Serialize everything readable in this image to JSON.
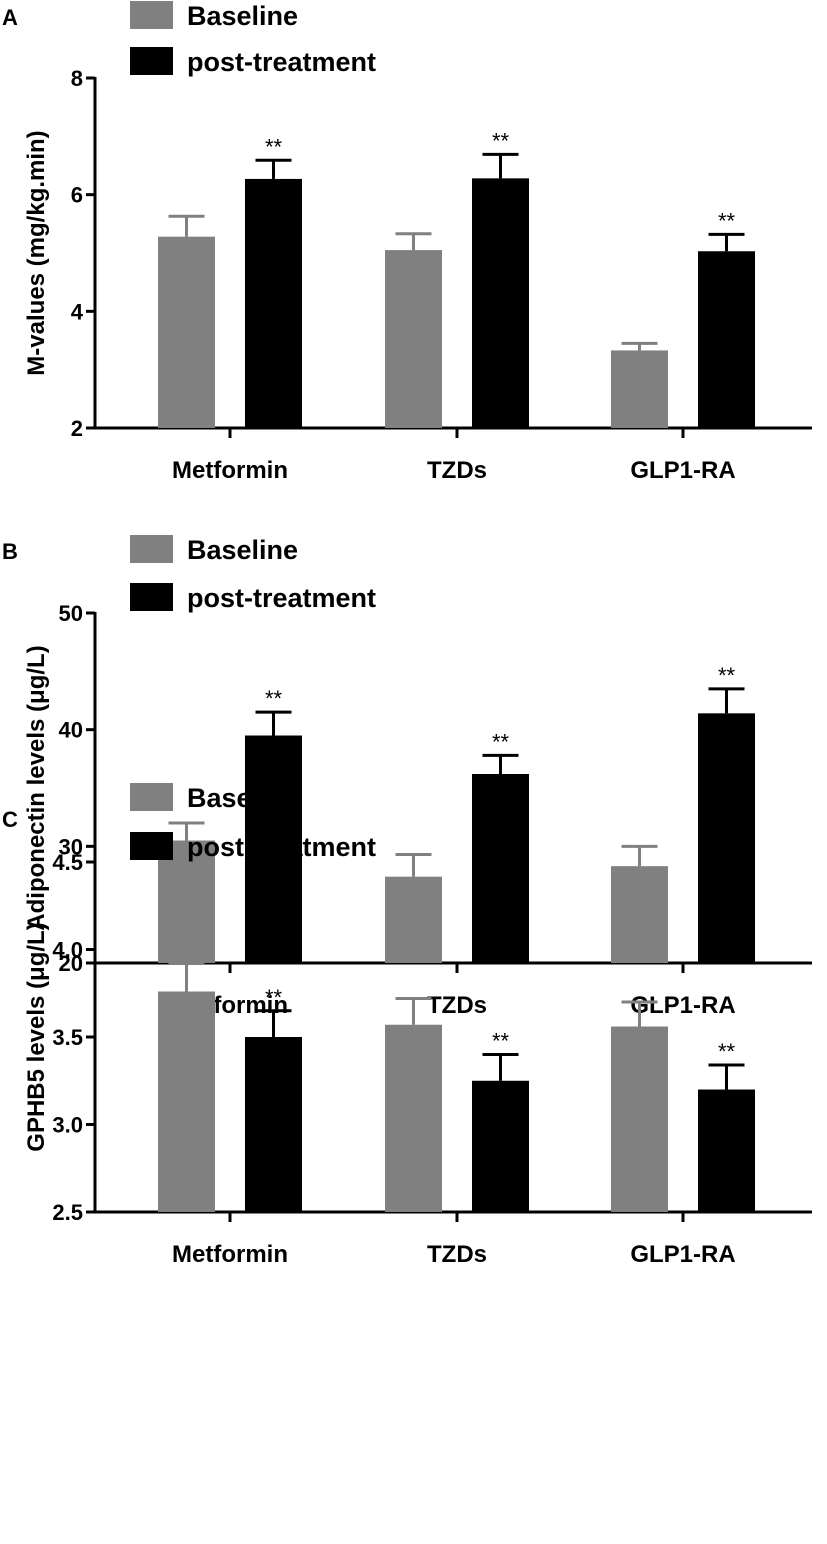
{
  "colors": {
    "baseline": "#808080",
    "post": "#000000",
    "axis": "#000000"
  },
  "chart_data": [
    {
      "type": "bar",
      "panel": "A",
      "ylabel": "M-values (mg/kg.min)",
      "ylim": [
        2,
        8
      ],
      "yticks": [
        2,
        4,
        6,
        8
      ],
      "ytick_labels": [
        "2",
        "4",
        "6",
        "8"
      ],
      "categories": [
        "Metformin",
        "TZDs",
        "GLP1-RA"
      ],
      "legend": [
        "Baseline",
        "post-treatment"
      ],
      "series": [
        {
          "name": "Baseline",
          "values": [
            5.28,
            5.05,
            3.33
          ],
          "errors": [
            0.35,
            0.28,
            0.12
          ],
          "sig": [
            "",
            "",
            ""
          ]
        },
        {
          "name": "post-treatment",
          "values": [
            6.27,
            6.28,
            5.03
          ],
          "errors": [
            0.32,
            0.41,
            0.29
          ],
          "sig": [
            "**",
            "**",
            "**"
          ]
        }
      ]
    },
    {
      "type": "bar",
      "panel": "B",
      "ylabel": "Adiponectin levels (μg/L)",
      "ylim": [
        20,
        50
      ],
      "yticks": [
        20,
        30,
        40,
        50
      ],
      "ytick_labels": [
        "20",
        "30",
        "40",
        "50"
      ],
      "categories": [
        "Metformin",
        "TZDs",
        "GLP1-RA"
      ],
      "legend": [
        "Baseline",
        "post-treatment"
      ],
      "series": [
        {
          "name": "Baseline",
          "values": [
            30.5,
            27.4,
            28.3
          ],
          "errors": [
            1.5,
            1.9,
            1.7
          ],
          "sig": [
            "",
            "",
            ""
          ]
        },
        {
          "name": "post-treatment",
          "values": [
            39.5,
            36.2,
            41.4
          ],
          "errors": [
            2.0,
            1.6,
            2.1
          ],
          "sig": [
            "**",
            "**",
            "**"
          ]
        }
      ]
    },
    {
      "type": "bar",
      "panel": "C",
      "ylabel": "GPHB5 levels (μg/L)",
      "ylim": [
        2.5,
        4.5
      ],
      "yticks": [
        2.5,
        3.0,
        3.5,
        4.0,
        4.5
      ],
      "ytick_labels": [
        "2.5",
        "3.0",
        "3.5",
        "4.0",
        "4.5"
      ],
      "categories": [
        "Metformin",
        "TZDs",
        "GLP1-RA"
      ],
      "legend": [
        "Baseline",
        "post-treatment"
      ],
      "series": [
        {
          "name": "Baseline",
          "values": [
            3.76,
            3.57,
            3.56
          ],
          "errors": [
            0.16,
            0.15,
            0.14
          ],
          "sig": [
            "",
            "",
            ""
          ]
        },
        {
          "name": "post-treatment",
          "values": [
            3.5,
            3.25,
            3.2
          ],
          "errors": [
            0.15,
            0.15,
            0.14
          ],
          "sig": [
            "**",
            "**",
            "**"
          ]
        }
      ]
    }
  ]
}
